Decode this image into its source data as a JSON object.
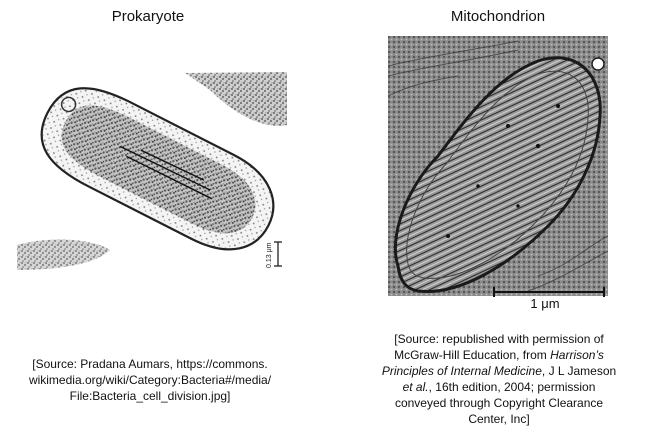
{
  "titles": {
    "left": "Prokaryote",
    "right": "Mitochondrion"
  },
  "scale_bars": {
    "left_label": "0.13 μm",
    "right_label": "1 μm"
  },
  "sources": {
    "left": {
      "line1": "[Source: Pradana Aumars, https://commons.",
      "line2": "wikimedia.org/wiki/Category:Bacteria#/media/",
      "line3": "File:Bacteria_cell_division.jpg]"
    },
    "right": {
      "line1": "[Source: republished with permission of",
      "line2a": "McGraw-Hill Education, from ",
      "line2b": "Harrison’s",
      "line3": "Principles of Internal Medicine",
      "line3b": ", J L Jameson",
      "line4a": "et al.",
      "line4b": ", 16th edition, 2004; permission",
      "line5": "conveyed through Copyright Clearance",
      "line6": "Center, Inc]"
    }
  }
}
